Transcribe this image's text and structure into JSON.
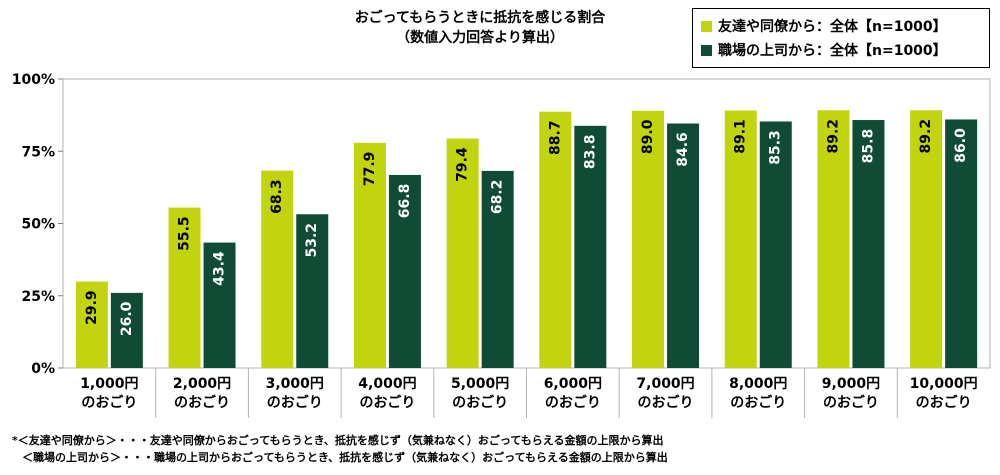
{
  "chart_data": {
    "type": "bar",
    "title": "おごってもらうときに抵抗を感じる割合",
    "subtitle": "（数値入力回答より算出）",
    "categories": [
      [
        "1,000円",
        "のおごり"
      ],
      [
        "2,000円",
        "のおごり"
      ],
      [
        "3,000円",
        "のおごり"
      ],
      [
        "4,000円",
        "のおごり"
      ],
      [
        "5,000円",
        "のおごり"
      ],
      [
        "6,000円",
        "のおごり"
      ],
      [
        "7,000円",
        "のおごり"
      ],
      [
        "8,000円",
        "のおごり"
      ],
      [
        "9,000円",
        "のおごり"
      ],
      [
        "10,000円",
        "のおごり"
      ]
    ],
    "series": [
      {
        "name": "友達や同僚から：全体【n=1000】",
        "color": "#c2d40d",
        "values": [
          29.9,
          55.5,
          68.3,
          77.9,
          79.4,
          88.7,
          89.0,
          89.1,
          89.2,
          89.2
        ],
        "labels": [
          "29.9",
          "55.5",
          "68.3",
          "77.9",
          "79.4",
          "88.7",
          "89.0",
          "89.1",
          "89.2",
          "89.2"
        ]
      },
      {
        "name": "職場の上司から：全体【n=1000】",
        "color": "#0f4b35",
        "values": [
          26.0,
          43.4,
          53.2,
          66.8,
          68.2,
          83.8,
          84.6,
          85.3,
          85.8,
          86.0
        ],
        "labels": [
          "26.0",
          "43.4",
          "53.2",
          "66.8",
          "68.2",
          "83.8",
          "84.6",
          "85.3",
          "85.8",
          "86.0"
        ]
      }
    ],
    "y_ticks": [
      0,
      25,
      50,
      75,
      100
    ],
    "y_tick_labels": [
      "0%",
      "25%",
      "50%",
      "75%",
      "100%"
    ],
    "ylim": [
      0,
      100
    ],
    "xlabel": "",
    "ylabel": "",
    "legend_position": "top-right",
    "grid": false
  },
  "footnotes": [
    "*＜友達や同僚から＞・・・友達や同僚からおごってもらうとき、抵抗を感じず（気兼ねなく）おごってもらえる金額の上限から算出",
    "＜職場の上司から＞・・・職場の上司からおごってもらうとき、抵抗を感じず（気兼ねなく）おごってもらえる金額の上限から算出"
  ]
}
